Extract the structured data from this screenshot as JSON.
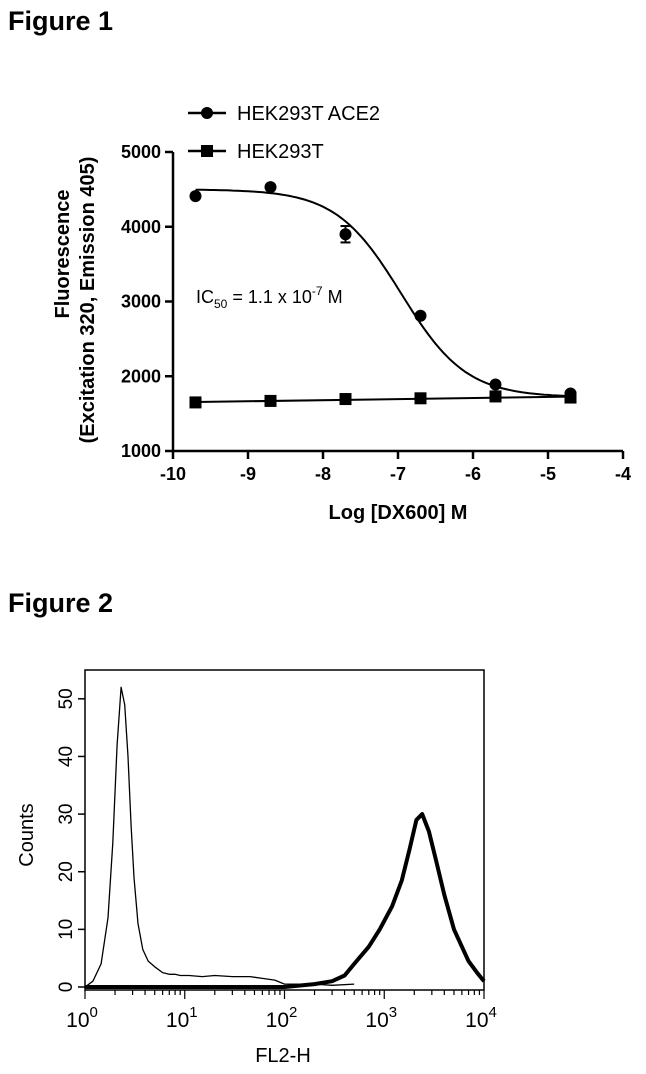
{
  "figure1": {
    "title": "Figure 1",
    "annotation": {
      "prefix": "IC",
      "sub": "50",
      "mid": " = 1.1 x 10",
      "sup": "-7",
      "suffix": " M"
    }
  },
  "figure2": {
    "title": "Figure 2"
  },
  "chart_data": [
    {
      "type": "scatter",
      "xlabel": "Log [DX600] M",
      "ylabel": [
        "Fluorescence",
        "(Excitation 320, Emission 405)"
      ],
      "xlim": [
        -10,
        -4
      ],
      "ylim": [
        1000,
        5000
      ],
      "xticks": [
        -10,
        -9,
        -8,
        -7,
        -6,
        -5,
        -4
      ],
      "yticks": [
        1000,
        2000,
        3000,
        4000,
        5000
      ],
      "legend_position": "top-left",
      "grid": false,
      "series": [
        {
          "name": "HEK293T ACE2",
          "marker": "circle",
          "fit": "sigmoidal",
          "x": [
            -9.7,
            -8.7,
            -7.7,
            -6.7,
            -5.7,
            -4.7
          ],
          "y": [
            4410,
            4530,
            3900,
            2810,
            1890,
            1770
          ],
          "err": [
            0,
            0,
            110,
            0,
            0,
            0
          ]
        },
        {
          "name": "HEK293T",
          "marker": "square",
          "fit": "linear",
          "x": [
            -9.7,
            -8.7,
            -7.7,
            -6.7,
            -5.7,
            -4.7
          ],
          "y": [
            1650,
            1670,
            1695,
            1705,
            1730,
            1715
          ],
          "err": [
            0,
            0,
            0,
            0,
            0,
            0
          ]
        }
      ]
    },
    {
      "type": "line",
      "xlabel": "FL2-H",
      "ylabel": "Counts",
      "xscale": "log",
      "xlim": [
        1,
        10000
      ],
      "ylim": [
        0,
        55
      ],
      "xticks": [
        {
          "base": "10",
          "exp": "0"
        },
        {
          "base": "10",
          "exp": "1"
        },
        {
          "base": "10",
          "exp": "2"
        },
        {
          "base": "10",
          "exp": "3"
        },
        {
          "base": "10",
          "exp": "4"
        }
      ],
      "yticks": [
        0,
        10,
        20,
        30,
        40,
        50
      ],
      "grid": false,
      "series": [
        {
          "style": "thin",
          "x": [
            1,
            1.2,
            1.45,
            1.7,
            1.9,
            2.1,
            2.3,
            2.5,
            2.7,
            2.9,
            3.1,
            3.4,
            3.8,
            4.3,
            5,
            6,
            7,
            8,
            9,
            11,
            15,
            20,
            30,
            45,
            60,
            80,
            100,
            130,
            200,
            300,
            500
          ],
          "y": [
            0,
            1,
            4,
            12,
            25,
            42,
            52,
            49,
            40,
            28,
            19,
            11,
            6.5,
            4.5,
            3.5,
            2.5,
            2.2,
            2.2,
            2,
            2,
            1.8,
            2,
            1.8,
            1.8,
            1.5,
            1.2,
            0.5,
            0.5,
            0.5,
            0.3,
            0.5
          ]
        },
        {
          "style": "thick",
          "x": [
            1,
            10,
            60,
            100,
            200,
            300,
            400,
            500,
            700,
            900,
            1200,
            1500,
            1800,
            2100,
            2400,
            2800,
            3300,
            4000,
            5000,
            6000,
            7000,
            8500,
            10000
          ],
          "y": [
            0,
            0,
            0,
            0,
            0.5,
            1,
            2,
            4,
            7,
            10,
            14,
            18.5,
            24,
            29,
            30,
            27,
            22,
            16,
            10,
            7,
            4.5,
            2.5,
            1
          ]
        }
      ]
    }
  ]
}
